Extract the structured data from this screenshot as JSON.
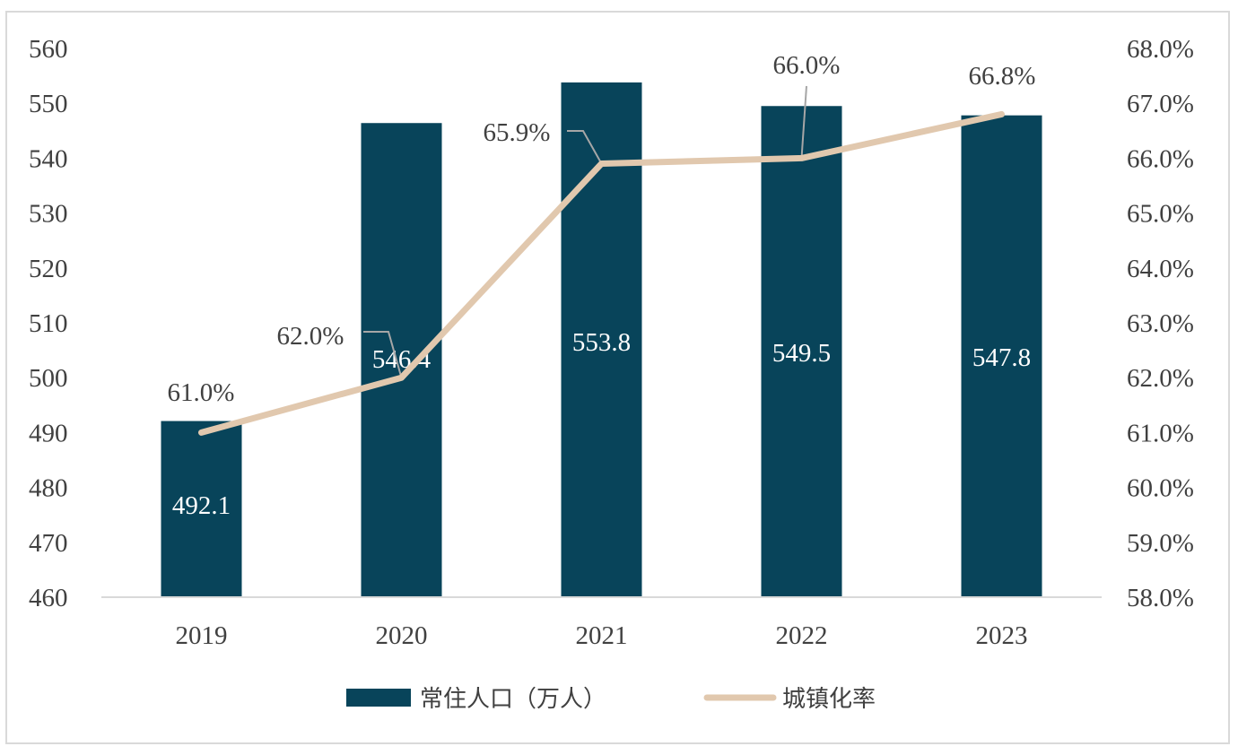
{
  "chart_data": {
    "type": "bar",
    "categories": [
      "2019",
      "2020",
      "2021",
      "2022",
      "2023"
    ],
    "series": [
      {
        "name": "常住人口（万人）",
        "type": "bar",
        "axis": "left",
        "values": [
          492.1,
          546.4,
          553.8,
          549.5,
          547.8
        ],
        "labels": [
          "492.1",
          "546.4",
          "553.8",
          "549.5",
          "547.8"
        ],
        "color": "#08445A"
      },
      {
        "name": "城镇化率",
        "type": "line",
        "axis": "right",
        "values": [
          61.0,
          62.0,
          65.9,
          66.0,
          66.8
        ],
        "labels": [
          "61.0%",
          "62.0%",
          "65.9%",
          "66.0%",
          "66.8%"
        ],
        "color": "#E1C8AE"
      }
    ],
    "y_left": {
      "ylim": [
        460,
        560
      ],
      "ticks": [
        "460",
        "470",
        "480",
        "490",
        "500",
        "510",
        "520",
        "530",
        "540",
        "550",
        "560"
      ]
    },
    "y_right": {
      "ylim": [
        58.0,
        68.0
      ],
      "ticks": [
        "58.0%",
        "59.0%",
        "60.0%",
        "61.0%",
        "62.0%",
        "63.0%",
        "64.0%",
        "65.0%",
        "66.0%",
        "67.0%",
        "68.0%"
      ]
    },
    "legend": {
      "position": "bottom"
    },
    "grid": false
  }
}
